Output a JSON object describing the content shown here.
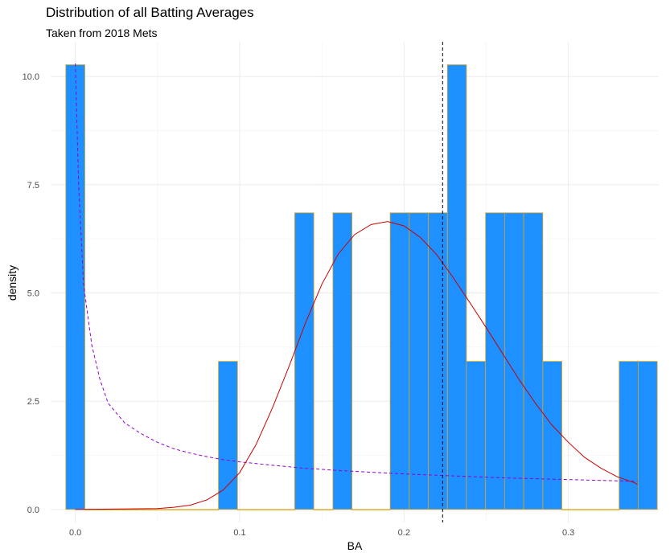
{
  "chart_data": {
    "type": "histogram",
    "title": "Distribution of all Batting Averages",
    "subtitle": "Taken from 2018 Mets",
    "xlabel": "BA",
    "ylabel": "density",
    "xlim": [
      -0.015,
      0.355
    ],
    "ylim": [
      -0.3,
      10.8
    ],
    "x_ticks": [
      0.0,
      0.1,
      0.2,
      0.3
    ],
    "x_tick_labels": [
      "0.0",
      "0.1",
      "0.2",
      "0.3"
    ],
    "y_ticks": [
      0.0,
      2.5,
      5.0,
      7.5,
      10.0
    ],
    "y_tick_labels": [
      "0.0",
      "2.5",
      "5.0",
      "7.5",
      "10.0"
    ],
    "bin_width": 0.01161,
    "bins": [
      {
        "x": 0.0,
        "density": 10.27
      },
      {
        "x": 0.01161,
        "density": 0
      },
      {
        "x": 0.02322,
        "density": 0
      },
      {
        "x": 0.03483,
        "density": 0
      },
      {
        "x": 0.04644,
        "density": 0
      },
      {
        "x": 0.05805,
        "density": 0
      },
      {
        "x": 0.06966,
        "density": 0
      },
      {
        "x": 0.08127,
        "density": 0
      },
      {
        "x": 0.09288,
        "density": 3.42
      },
      {
        "x": 0.10449,
        "density": 0
      },
      {
        "x": 0.1161,
        "density": 0
      },
      {
        "x": 0.12771,
        "density": 0
      },
      {
        "x": 0.13932,
        "density": 6.85
      },
      {
        "x": 0.15093,
        "density": 0
      },
      {
        "x": 0.16254,
        "density": 6.85
      },
      {
        "x": 0.17415,
        "density": 0
      },
      {
        "x": 0.18576,
        "density": 0
      },
      {
        "x": 0.19737,
        "density": 6.85
      },
      {
        "x": 0.20898,
        "density": 6.85
      },
      {
        "x": 0.22059,
        "density": 6.85
      },
      {
        "x": 0.2322,
        "density": 10.27
      },
      {
        "x": 0.24381,
        "density": 3.42
      },
      {
        "x": 0.25542,
        "density": 6.85
      },
      {
        "x": 0.26703,
        "density": 6.85
      },
      {
        "x": 0.27864,
        "density": 6.85
      },
      {
        "x": 0.29025,
        "density": 3.42
      },
      {
        "x": 0.30186,
        "density": 0
      },
      {
        "x": 0.31347,
        "density": 0
      },
      {
        "x": 0.32508,
        "density": 0
      },
      {
        "x": 0.33669,
        "density": 3.42
      },
      {
        "x": 0.3483,
        "density": 3.42
      }
    ],
    "bar_fill": "#1E90FF",
    "bar_outline": "#DAA520",
    "mean_line": {
      "x": 0.2235,
      "color": "#000000",
      "style": "dashed"
    },
    "normal_curve": {
      "color": "#CC0000",
      "points": [
        [
          0.0,
          0.0
        ],
        [
          0.05,
          0.02
        ],
        [
          0.06,
          0.05
        ],
        [
          0.07,
          0.1
        ],
        [
          0.08,
          0.22
        ],
        [
          0.09,
          0.45
        ],
        [
          0.1,
          0.85
        ],
        [
          0.11,
          1.5
        ],
        [
          0.12,
          2.35
        ],
        [
          0.13,
          3.3
        ],
        [
          0.14,
          4.3
        ],
        [
          0.15,
          5.2
        ],
        [
          0.16,
          5.9
        ],
        [
          0.17,
          6.35
        ],
        [
          0.18,
          6.58
        ],
        [
          0.19,
          6.65
        ],
        [
          0.2,
          6.55
        ],
        [
          0.21,
          6.28
        ],
        [
          0.22,
          5.88
        ],
        [
          0.23,
          5.35
        ],
        [
          0.24,
          4.78
        ],
        [
          0.25,
          4.2
        ],
        [
          0.26,
          3.6
        ],
        [
          0.27,
          3.0
        ],
        [
          0.28,
          2.45
        ],
        [
          0.29,
          1.95
        ],
        [
          0.3,
          1.55
        ],
        [
          0.31,
          1.2
        ],
        [
          0.32,
          0.95
        ],
        [
          0.33,
          0.75
        ],
        [
          0.34,
          0.62
        ],
        [
          0.342,
          0.58
        ]
      ]
    },
    "kde_curve": {
      "color": "#9400D3",
      "style": "dashed",
      "points": [
        [
          0.0,
          10.3
        ],
        [
          0.002,
          7.5
        ],
        [
          0.005,
          5.2
        ],
        [
          0.01,
          3.8
        ],
        [
          0.015,
          3.0
        ],
        [
          0.02,
          2.45
        ],
        [
          0.03,
          2.0
        ],
        [
          0.04,
          1.75
        ],
        [
          0.05,
          1.55
        ],
        [
          0.06,
          1.4
        ],
        [
          0.07,
          1.3
        ],
        [
          0.08,
          1.22
        ],
        [
          0.09,
          1.15
        ],
        [
          0.1,
          1.1
        ],
        [
          0.12,
          1.02
        ],
        [
          0.14,
          0.95
        ],
        [
          0.16,
          0.9
        ],
        [
          0.18,
          0.86
        ],
        [
          0.2,
          0.82
        ],
        [
          0.22,
          0.79
        ],
        [
          0.24,
          0.76
        ],
        [
          0.26,
          0.73
        ],
        [
          0.28,
          0.71
        ],
        [
          0.3,
          0.69
        ],
        [
          0.32,
          0.67
        ],
        [
          0.342,
          0.65
        ]
      ]
    },
    "grid": true,
    "legend": "none"
  }
}
